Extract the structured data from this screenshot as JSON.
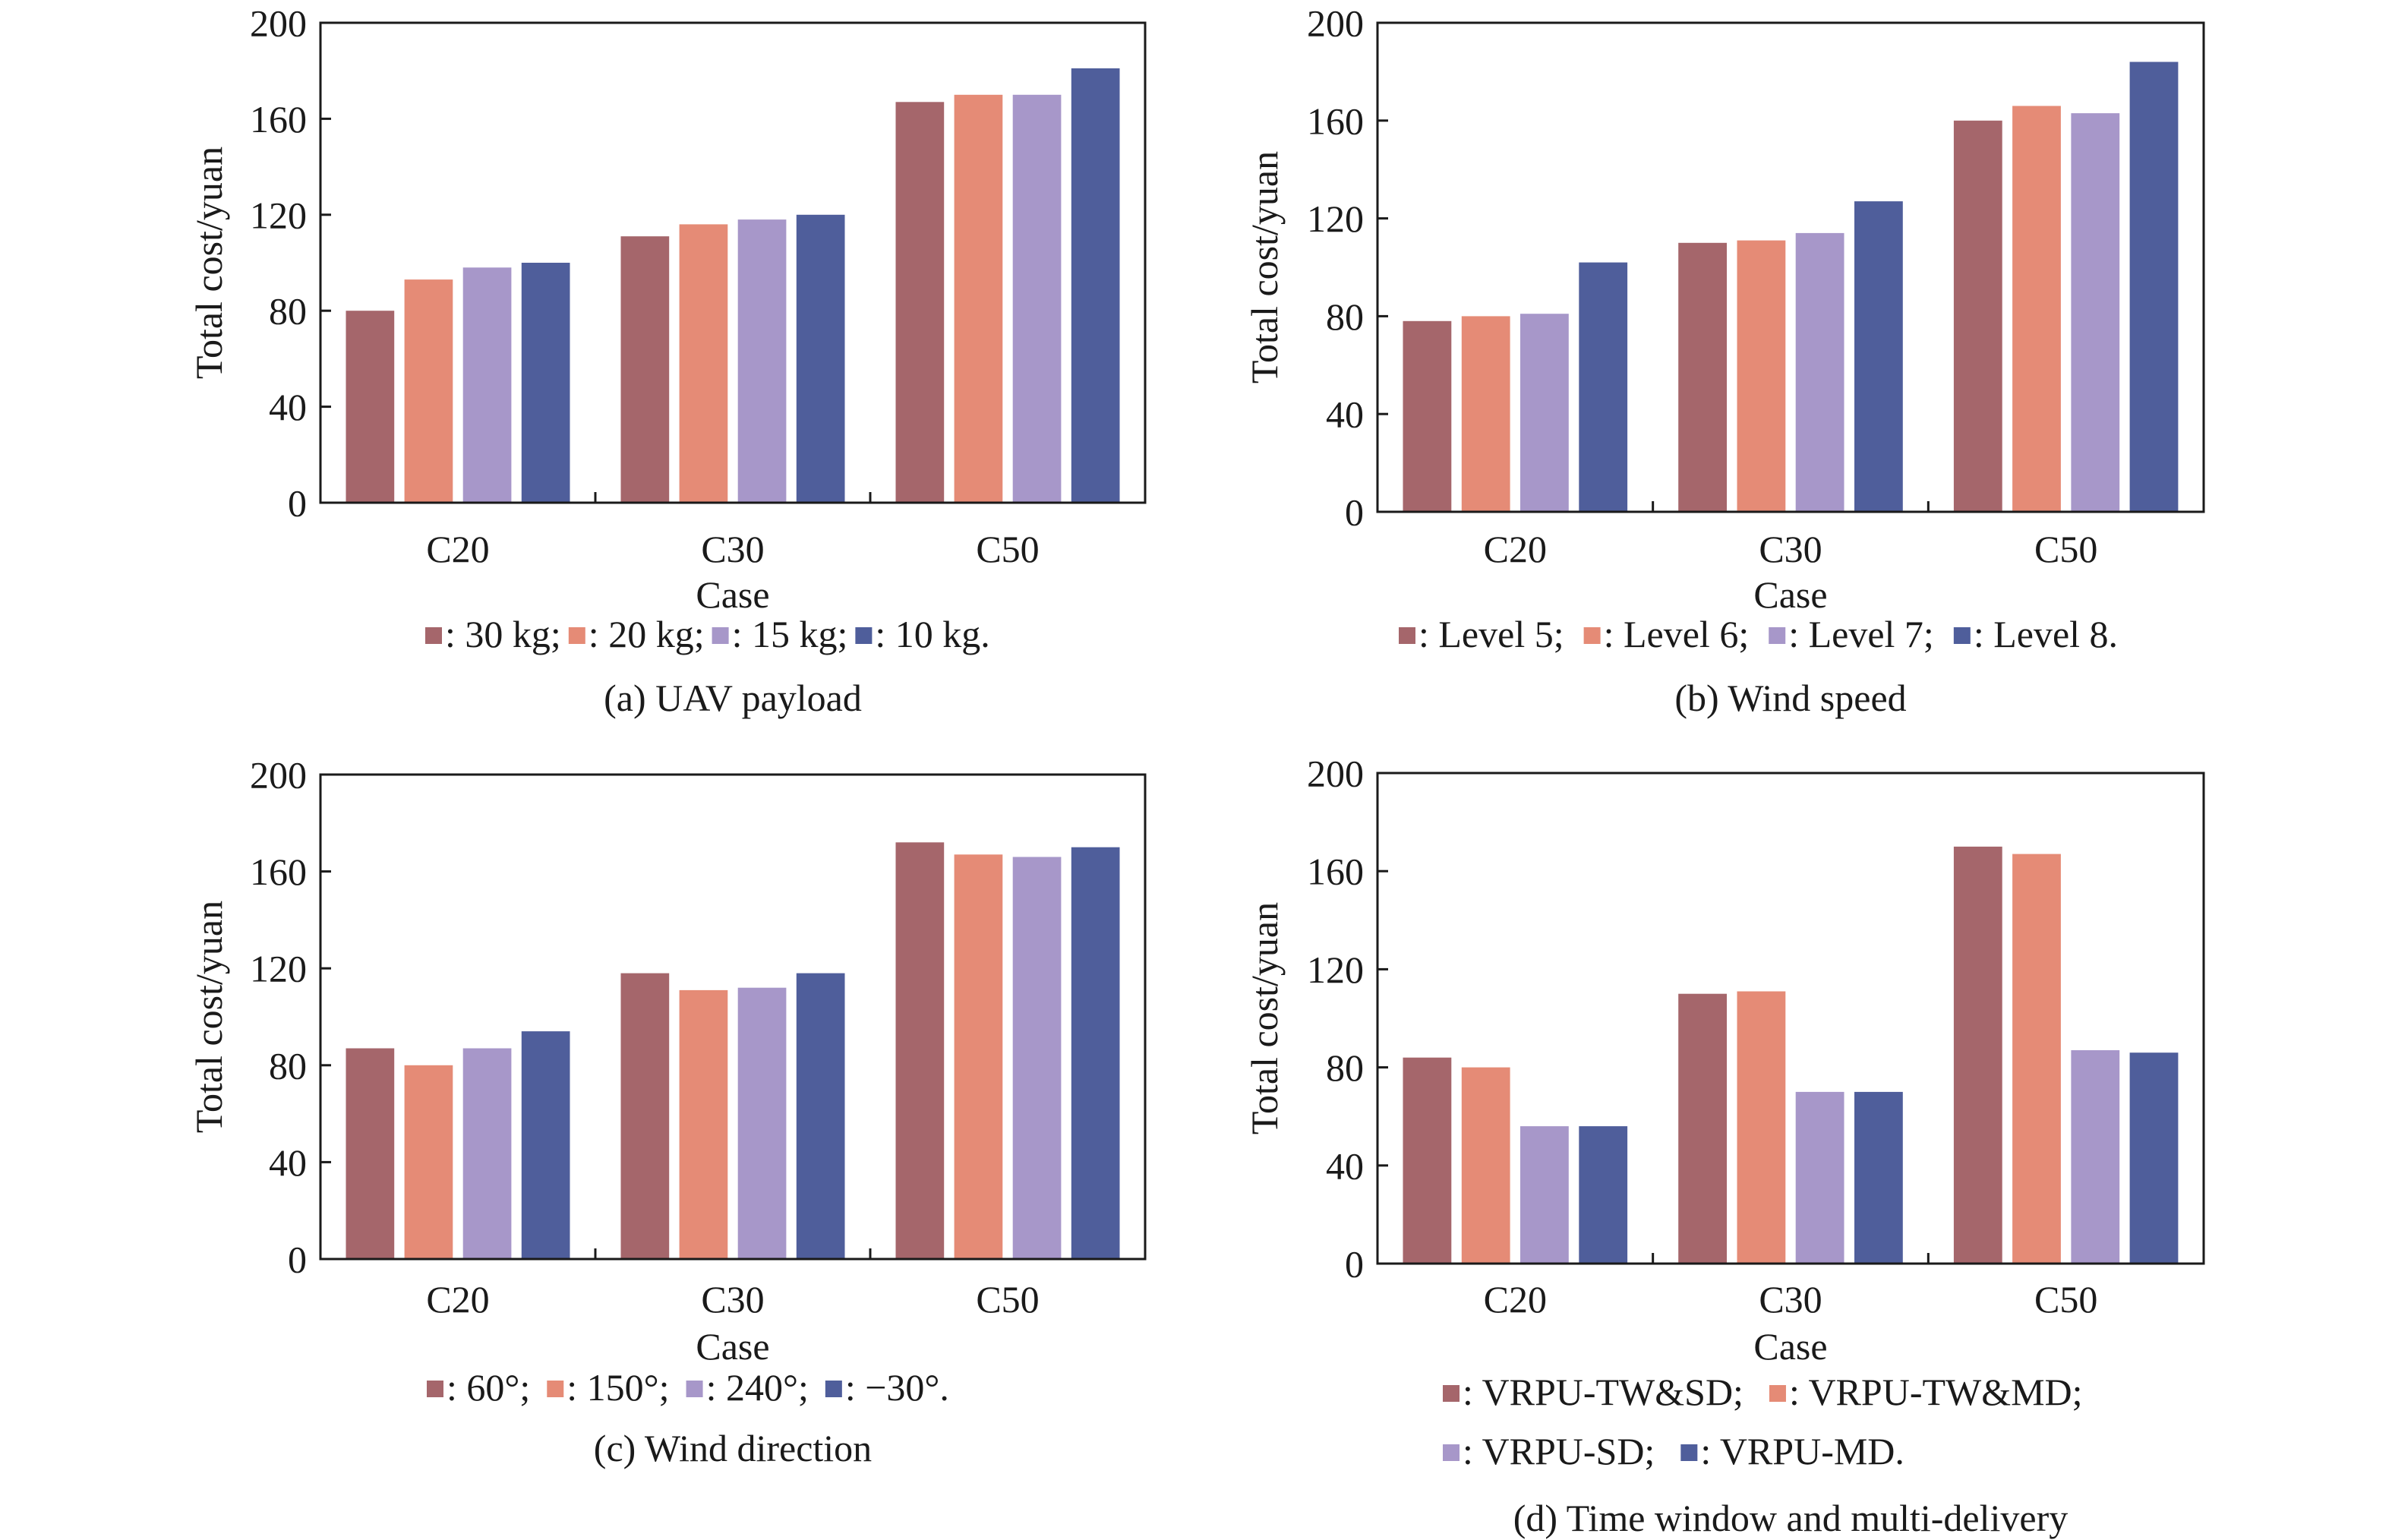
{
  "colors": {
    "series": [
      "#a5666b",
      "#e58b76",
      "#a797c9",
      "#4f5e9b"
    ],
    "axis": "#1a1a1a"
  },
  "chart_data": [
    {
      "type": "bar",
      "subtitle": "(a) UAV payload",
      "xlabel": "Case",
      "ylabel": "Total cost/yuan",
      "ylim": [
        0,
        200
      ],
      "yticks": [
        "0",
        "40",
        "80",
        "120",
        "160",
        "200"
      ],
      "categories": [
        "C20",
        "C30",
        "C50"
      ],
      "grid": false,
      "legend_lines": [
        [
          "30 kg;",
          "20 kg;",
          "15 kg;",
          "10 kg."
        ]
      ],
      "series": [
        {
          "name": "30 kg",
          "values": [
            80,
            111,
            167
          ]
        },
        {
          "name": "20 kg",
          "values": [
            93,
            116,
            170
          ]
        },
        {
          "name": "15 kg",
          "values": [
            98,
            118,
            170
          ]
        },
        {
          "name": "10 kg",
          "values": [
            100,
            120,
            181
          ]
        }
      ]
    },
    {
      "type": "bar",
      "subtitle": "(b) Wind speed",
      "xlabel": "Case",
      "ylabel": "Total cost/yuan",
      "ylim": [
        0,
        200
      ],
      "yticks": [
        "0",
        "40",
        "80",
        "120",
        "160",
        "200"
      ],
      "categories": [
        "C20",
        "C30",
        "C50"
      ],
      "grid": false,
      "legend_lines": [
        [
          "Level 5;",
          "Level 6;",
          "Level 7;",
          "Level 8."
        ]
      ],
      "series": [
        {
          "name": "Level 5",
          "values": [
            78,
            110,
            160
          ]
        },
        {
          "name": "Level 6",
          "values": [
            80,
            111,
            166
          ]
        },
        {
          "name": "Level 7",
          "values": [
            81,
            114,
            163
          ]
        },
        {
          "name": "Level 8",
          "values": [
            102,
            127,
            184
          ]
        }
      ]
    },
    {
      "type": "bar",
      "subtitle": "(c) Wind direction",
      "xlabel": "Case",
      "ylabel": "Total cost/yuan",
      "ylim": [
        0,
        200
      ],
      "yticks": [
        "0",
        "40",
        "80",
        "120",
        "160",
        "200"
      ],
      "categories": [
        "C20",
        "C30",
        "C50"
      ],
      "grid": false,
      "legend_lines": [
        [
          "60°;",
          "150°;",
          "240°;",
          "−30°."
        ]
      ],
      "series": [
        {
          "name": "60°",
          "values": [
            87,
            118,
            172
          ]
        },
        {
          "name": "150°",
          "values": [
            80,
            111,
            167
          ]
        },
        {
          "name": "240°",
          "values": [
            87,
            112,
            166
          ]
        },
        {
          "name": "−30°",
          "values": [
            94,
            118,
            170
          ]
        }
      ]
    },
    {
      "type": "bar",
      "subtitle": "(d) Time window and multi-delivery",
      "xlabel": "Case",
      "ylabel": "Total cost/yuan",
      "ylim": [
        0,
        200
      ],
      "yticks": [
        "0",
        "40",
        "80",
        "120",
        "160",
        "200"
      ],
      "categories": [
        "C20",
        "C30",
        "C50"
      ],
      "grid": false,
      "legend_lines": [
        [
          "VRPU-TW&SD;",
          "VRPU-TW&MD;"
        ],
        [
          "VRPU-SD;",
          "VRPU-MD."
        ]
      ],
      "series": [
        {
          "name": "VRPU-TW&SD",
          "values": [
            84,
            110,
            170
          ]
        },
        {
          "name": "VRPU-TW&MD",
          "values": [
            80,
            111,
            167
          ]
        },
        {
          "name": "VRPU-SD",
          "values": [
            56,
            70,
            87
          ]
        },
        {
          "name": "VRPU-MD",
          "values": [
            56,
            70,
            86
          ]
        }
      ]
    }
  ]
}
